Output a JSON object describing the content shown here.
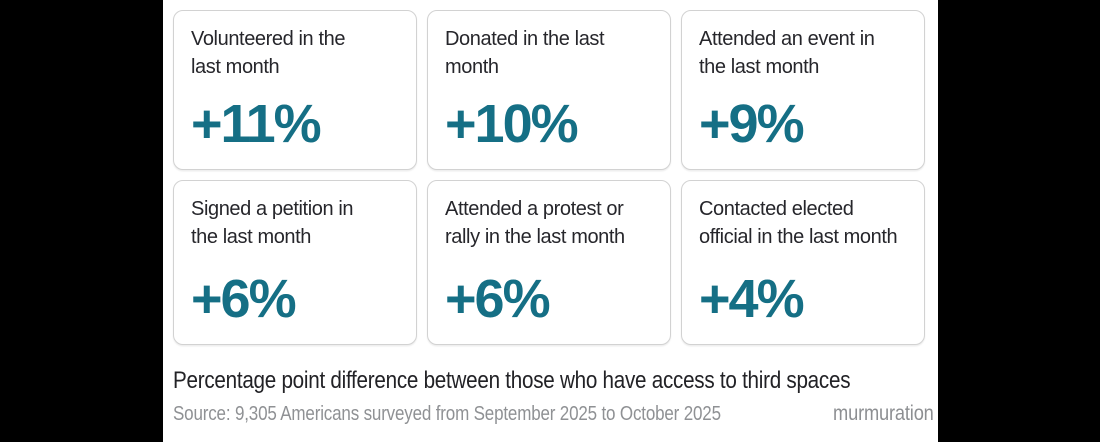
{
  "theme": {
    "letterbox_color": "#000000",
    "background_color": "#ffffff",
    "accent_teal": "#156f85",
    "card_border_color": "#d2d2d2",
    "label_color": "#26262b",
    "caption_color": "#222226",
    "muted_color": "#8f9194"
  },
  "cards": [
    {
      "label": "Volunteered in the\nlast month",
      "value": "+11%"
    },
    {
      "label": "Donated in the last\nmonth",
      "value": "+10%"
    },
    {
      "label": "Attended an event in\nthe last month",
      "value": "+9%"
    },
    {
      "label": "Signed a petition in\nthe last month",
      "value": "+6%"
    },
    {
      "label": "Attended a protest or\nrally in the last month",
      "value": "+6%"
    },
    {
      "label": "Contacted elected\nofficial in the last month",
      "value": "+4%"
    }
  ],
  "footer": {
    "caption": "Percentage point difference between those who have access to third spaces",
    "source": "Source: 9,305 Americans surveyed from September 2025 to October 2025",
    "brand": "murmuration"
  },
  "chart_data": {
    "type": "table",
    "title": "Percentage point difference between those who have access to third spaces",
    "categories": [
      "Volunteered in the last month",
      "Donated in the last month",
      "Attended an event in the last month",
      "Signed a petition in the last month",
      "Attended a protest or rally in the last month",
      "Contacted elected official in the last month"
    ],
    "values": [
      11,
      10,
      9,
      6,
      6,
      4
    ],
    "unit": "percentage points",
    "value_labels": [
      "+11%",
      "+10%",
      "+9%",
      "+6%",
      "+6%",
      "+4%"
    ],
    "source": "Source: 9,305 Americans surveyed from September 2025 to October 2025",
    "brand": "murmuration",
    "layout": "2x3 big-number stat cards"
  }
}
